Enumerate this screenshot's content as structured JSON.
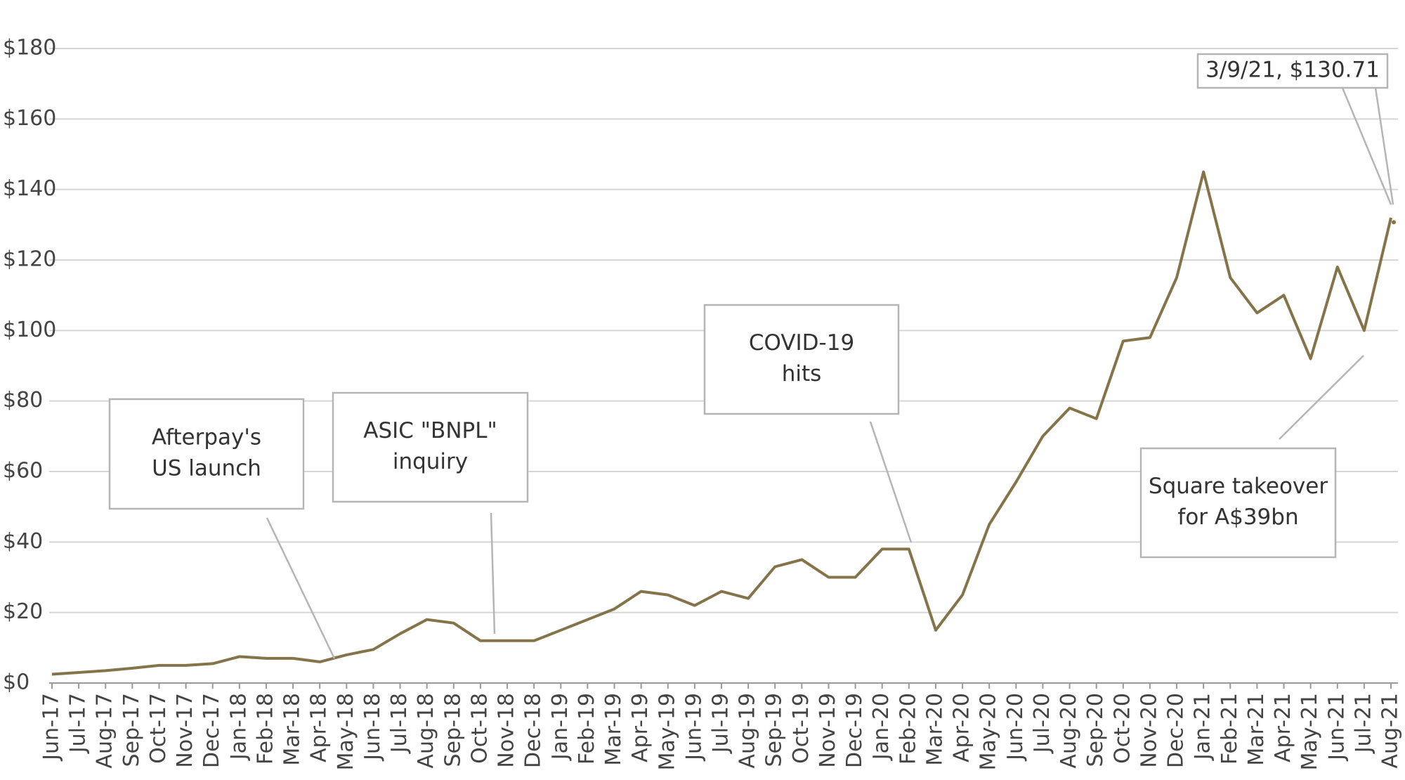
{
  "chart_data": {
    "type": "line",
    "categories": [
      "Jun-17",
      "Jul-17",
      "Aug-17",
      "Sep-17",
      "Oct-17",
      "Nov-17",
      "Dec-17",
      "Jan-18",
      "Feb-18",
      "Mar-18",
      "Apr-18",
      "May-18",
      "Jun-18",
      "Jul-18",
      "Aug-18",
      "Sep-18",
      "Oct-18",
      "Nov-18",
      "Dec-18",
      "Jan-19",
      "Feb-19",
      "Mar-19",
      "Apr-19",
      "May-19",
      "Jun-19",
      "Jul-19",
      "Aug-19",
      "Sep-19",
      "Oct-19",
      "Nov-19",
      "Dec-19",
      "Jan-20",
      "Feb-20",
      "Mar-20",
      "Apr-20",
      "May-20",
      "Jun-20",
      "Jul-20",
      "Aug-20",
      "Sep-20",
      "Oct-20",
      "Nov-20",
      "Dec-20",
      "Jan-21",
      "Feb-21",
      "Mar-21",
      "Apr-21",
      "May-21",
      "Jun-21",
      "Jul-21",
      "Aug-21"
    ],
    "series": [
      {
        "color": "#85744a",
        "values": [
          2.5,
          3,
          3.5,
          4.2,
          5,
          5,
          5.5,
          7.5,
          7,
          7,
          6,
          8,
          9.5,
          14,
          18,
          17,
          12,
          12,
          12,
          15,
          18,
          21,
          26,
          25,
          22,
          26,
          24,
          33,
          35,
          30,
          30,
          38,
          38,
          15,
          25,
          45,
          57,
          70,
          78,
          75,
          97,
          98,
          115,
          145,
          115,
          105,
          110,
          92,
          118,
          100,
          132
        ]
      }
    ],
    "ylim": [
      0,
      180
    ],
    "yticks": [
      {
        "value": 0,
        "label": "$0"
      },
      {
        "value": 20,
        "label": "$20"
      },
      {
        "value": 40,
        "label": "$40"
      },
      {
        "value": 60,
        "label": "$60"
      },
      {
        "value": 80,
        "label": "$80"
      },
      {
        "value": 100,
        "label": "$100"
      },
      {
        "value": 120,
        "label": "$120"
      },
      {
        "value": 140,
        "label": "$140"
      },
      {
        "value": 160,
        "label": "$160"
      },
      {
        "value": 180,
        "label": "$180"
      }
    ],
    "grid": true,
    "annotations": [
      {
        "lines": [
          "Afterpay's",
          "US launch"
        ]
      },
      {
        "lines": [
          "ASIC \"BNPL\"",
          "inquiry"
        ]
      },
      {
        "lines": [
          "COVID-19",
          "hits"
        ]
      },
      {
        "lines": [
          "Square takeover",
          "for A$39bn"
        ]
      },
      {
        "lines": [
          "3/9/21, $130.71"
        ],
        "value": 130.71
      }
    ]
  }
}
